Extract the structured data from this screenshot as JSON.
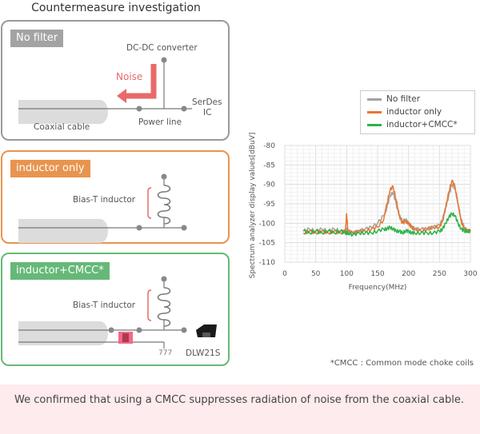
{
  "title": "Countermeasure investigation",
  "panels": {
    "no_filter": {
      "tag": "No filter",
      "dcdc": "DC-DC converter",
      "noise": "Noise",
      "serdes_line1": "SerDes",
      "serdes_line2": "IC",
      "coax": "Coaxial cable",
      "power_line": "Power line"
    },
    "inductor_only": {
      "tag": "inductor only",
      "bias_t": "Bias-T inductor"
    },
    "inductor_cmcc": {
      "tag": "inductor+CMCC*",
      "bias_t": "Bias-T inductor",
      "part": "DLW21S"
    }
  },
  "colors": {
    "no_filter": "#a3a3a3",
    "inductor_only": "#e8772e",
    "inductor_cmcc": "#2db34a",
    "noise": "#e86a6a"
  },
  "legend": [
    "No filter",
    "inductor only",
    "inductor+CMCC*"
  ],
  "chart_data": {
    "type": "line",
    "title": "",
    "xlabel": "Frequency(MHz)",
    "ylabel": "Spectrum analyzer display values[dBuV]",
    "xlim": [
      0,
      300
    ],
    "ylim": [
      -110,
      -80
    ],
    "xticks": [
      0,
      50,
      100,
      150,
      200,
      250,
      300
    ],
    "yticks": [
      -80,
      -85,
      -90,
      -95,
      -100,
      -105,
      -110
    ],
    "grid": true,
    "legend_position": "top-right",
    "x": [
      30,
      40,
      50,
      60,
      70,
      80,
      90,
      98,
      100,
      102,
      110,
      120,
      130,
      140,
      150,
      160,
      165,
      170,
      175,
      180,
      185,
      190,
      195,
      200,
      205,
      210,
      220,
      230,
      240,
      250,
      255,
      260,
      265,
      270,
      275,
      280,
      285,
      290,
      295,
      300
    ],
    "series": [
      {
        "name": "No filter",
        "values": [
          -102,
          -101.5,
          -102,
          -101.5,
          -102,
          -101.5,
          -102,
          -102,
          -101.5,
          -102,
          -102.5,
          -102,
          -101.5,
          -101,
          -100,
          -98,
          -96,
          -93,
          -92,
          -95,
          -98,
          -99.5,
          -99,
          -100,
          -101,
          -101.5,
          -101.5,
          -101.5,
          -101,
          -100.5,
          -99,
          -96,
          -93,
          -90,
          -91,
          -95,
          -99,
          -101,
          -102,
          -102
        ]
      },
      {
        "name": "inductor only",
        "values": [
          -102.5,
          -102,
          -102.5,
          -102,
          -102.5,
          -102,
          -102.5,
          -102,
          -97.5,
          -102,
          -102.5,
          -102,
          -102,
          -101.5,
          -101,
          -99,
          -95,
          -91.5,
          -90.5,
          -94,
          -98,
          -100,
          -99.5,
          -100,
          -101,
          -101.5,
          -102,
          -101.5,
          -101,
          -101,
          -99.5,
          -96,
          -92,
          -89,
          -90.5,
          -95,
          -99.5,
          -101.5,
          -102,
          -102
        ]
      },
      {
        "name": "inductor+CMCC*",
        "values": [
          -102,
          -102.5,
          -102,
          -102.5,
          -102,
          -102.5,
          -102,
          -102.5,
          -102.5,
          -102.5,
          -103,
          -102.5,
          -102.5,
          -102.5,
          -102,
          -101.5,
          -101.5,
          -101,
          -101.5,
          -102,
          -102,
          -102.5,
          -102,
          -102,
          -102.5,
          -102.5,
          -102.5,
          -102.5,
          -102.5,
          -102,
          -101.5,
          -100,
          -98.5,
          -97.5,
          -98,
          -100,
          -101.5,
          -102,
          -102,
          -102
        ]
      }
    ]
  },
  "footnote": "*CMCC : Common mode choke coils",
  "conclusion": "We confirmed that using a CMCC suppresses radiation of noise from the coaxial cable."
}
